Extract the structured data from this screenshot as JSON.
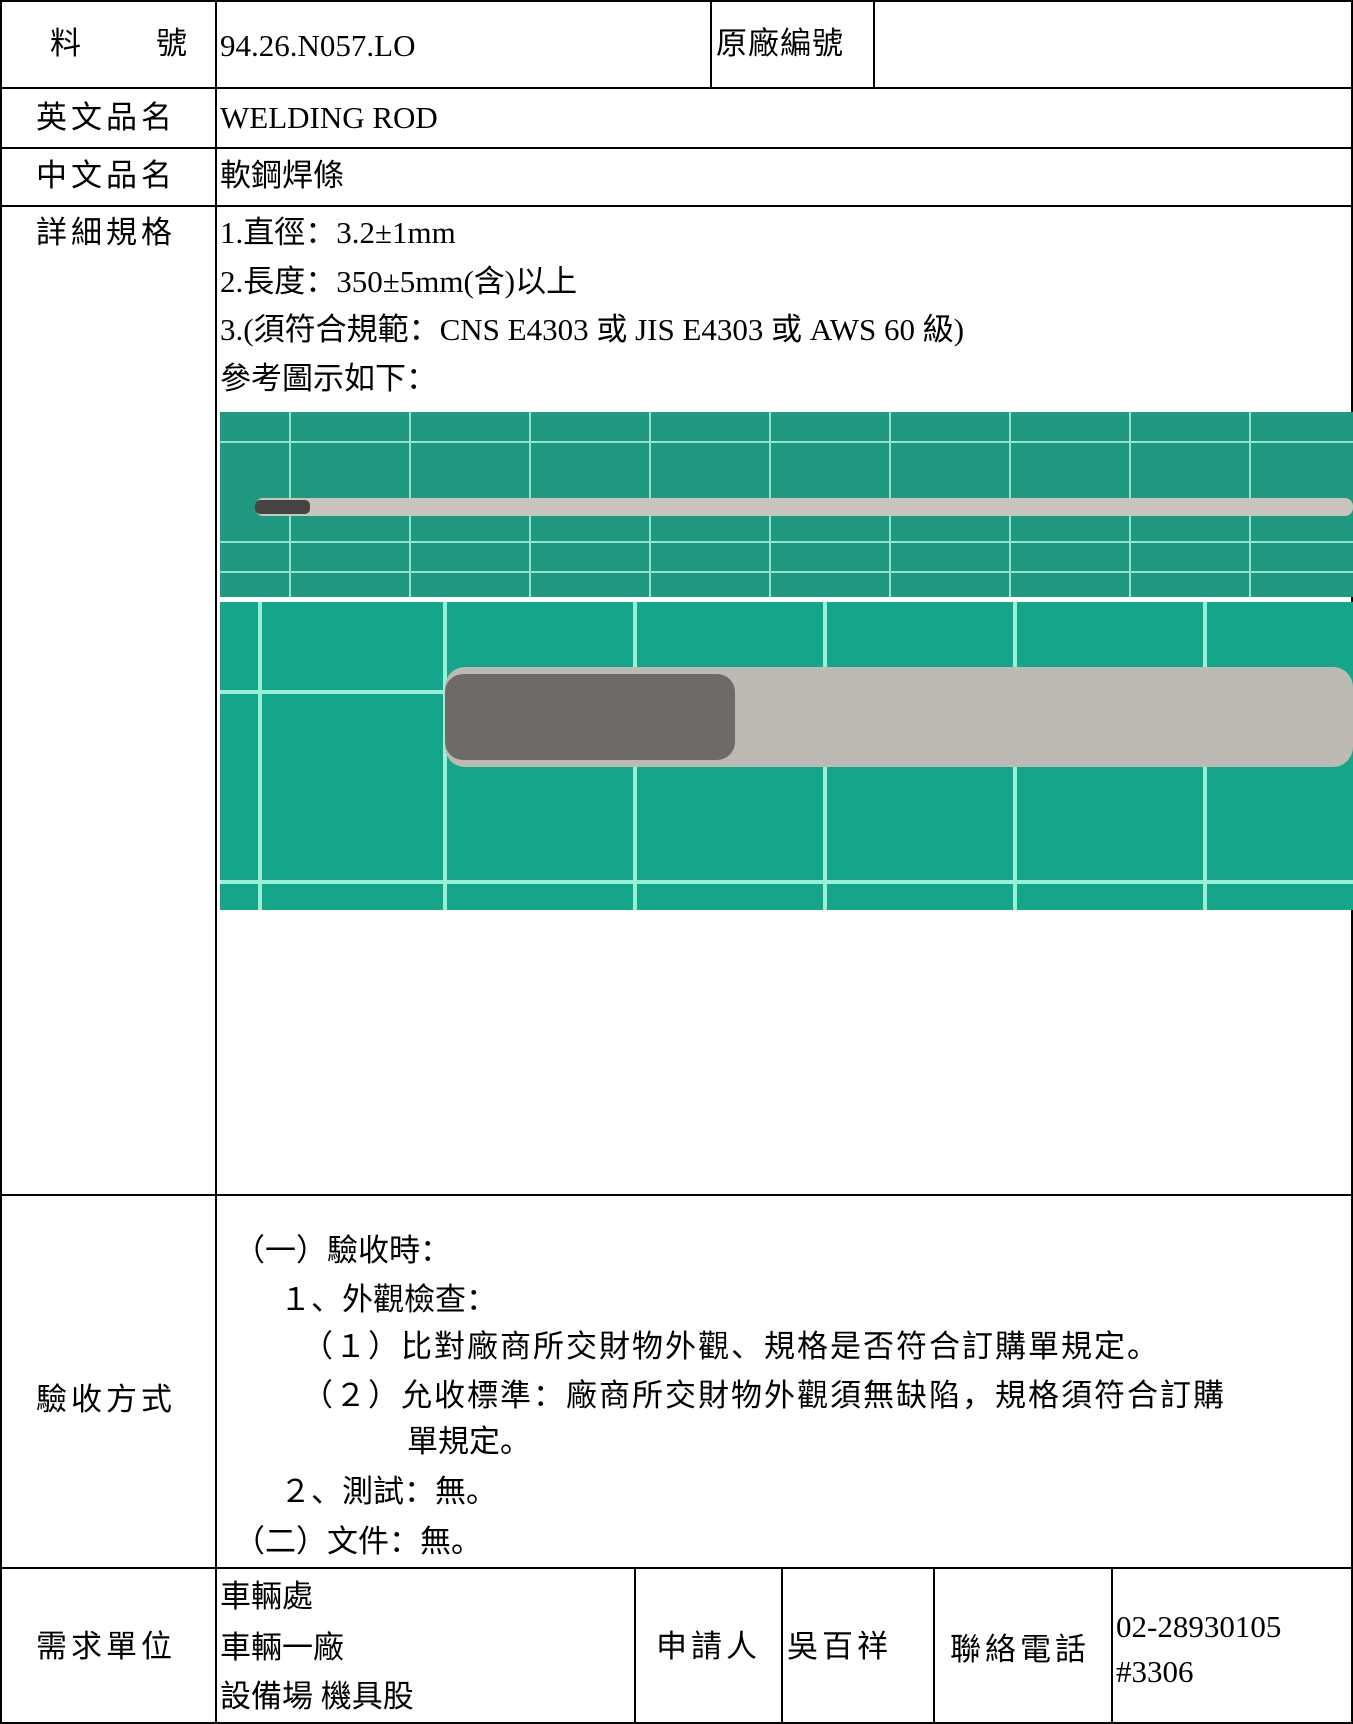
{
  "part_number": {
    "label": "料　號",
    "value": "94.26.N057.LO",
    "original_label": "原廠編號"
  },
  "english_name": {
    "label": "英文品名",
    "value": "WELDING ROD"
  },
  "chinese_name": {
    "label": "中文品名",
    "value": "軟鋼焊條"
  },
  "specification": {
    "label": "詳細規格",
    "lines": [
      "1.直徑：3.2±1mm",
      "2.長度：350±5mm(含)以上",
      "3.(須符合規範：CNS E4303 或 JIS E4303 或 AWS 60 級)",
      "參考圖示如下："
    ]
  },
  "acceptance": {
    "label": "驗收方式",
    "lines": [
      "（一）驗收時：",
      "１、外觀檢查：",
      "（１）比對廠商所交財物外觀、規格是否符合訂購單規定。",
      "（２）允收標準：廠商所交財物外觀須無缺陷，規格須符合訂購",
      "單規定。",
      "２、測試：無。",
      "（二）文件：無。"
    ]
  },
  "requester": {
    "label": "需求單位",
    "unit_lines": [
      "車輛處",
      "車輛一廠",
      "設備場 機具股"
    ],
    "applicant_label": "申請人",
    "applicant": "吳百祥",
    "phone_label": "聯絡電話",
    "phone_lines": [
      "02-28930105",
      "#3306"
    ]
  }
}
